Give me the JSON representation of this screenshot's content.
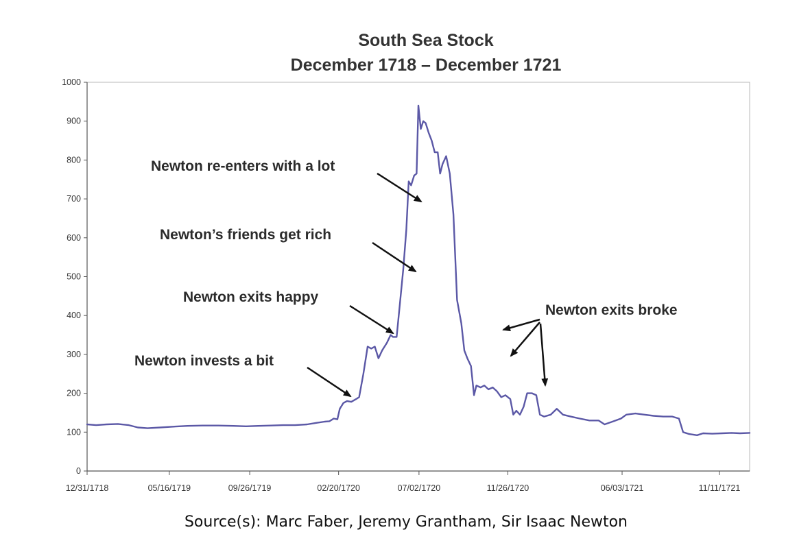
{
  "chart_data": {
    "type": "line",
    "title": "South Sea Stock",
    "subtitle": "December 1718 – December 1721",
    "xlabel": "",
    "ylabel": "",
    "ylim": [
      0,
      1000
    ],
    "yticks": [
      0,
      100,
      200,
      300,
      400,
      500,
      600,
      700,
      800,
      900,
      1000
    ],
    "xlim": [
      "1718-12-31",
      "1721-12-31"
    ],
    "xticks": [
      {
        "date": "1718-12-31",
        "label": "12/31/1718"
      },
      {
        "date": "1719-05-16",
        "label": "05/16/1719"
      },
      {
        "date": "1719-09-26",
        "label": "09/26/1719"
      },
      {
        "date": "1720-02-20",
        "label": "02/20/1720"
      },
      {
        "date": "1720-07-02",
        "label": "07/02/1720"
      },
      {
        "date": "1720-11-26",
        "label": "11/26/1720"
      },
      {
        "date": "1721-06-03",
        "label": "06/03/1721"
      },
      {
        "date": "1721-11-11",
        "label": "11/11/1721"
      }
    ],
    "grid": false,
    "line_color": "#5b58a6",
    "series": [
      {
        "points": [
          [
            "1718-12-31",
            120
          ],
          [
            "1719-01-15",
            118
          ],
          [
            "1719-02-01",
            120
          ],
          [
            "1719-02-20",
            121
          ],
          [
            "1719-03-10",
            118
          ],
          [
            "1719-03-25",
            112
          ],
          [
            "1719-04-10",
            110
          ],
          [
            "1719-05-01",
            112
          ],
          [
            "1719-05-20",
            114
          ],
          [
            "1719-06-15",
            116
          ],
          [
            "1719-07-10",
            117
          ],
          [
            "1719-08-05",
            117
          ],
          [
            "1719-08-30",
            116
          ],
          [
            "1719-09-20",
            115
          ],
          [
            "1719-10-10",
            116
          ],
          [
            "1719-10-30",
            117
          ],
          [
            "1719-11-20",
            118
          ],
          [
            "1719-12-10",
            118
          ],
          [
            "1719-12-30",
            120
          ],
          [
            "1720-01-15",
            124
          ],
          [
            "1720-01-28",
            127
          ],
          [
            "1720-02-05",
            128
          ],
          [
            "1720-02-12",
            135
          ],
          [
            "1720-02-18",
            133
          ],
          [
            "1720-02-22",
            160
          ],
          [
            "1720-02-28",
            175
          ],
          [
            "1720-03-05",
            180
          ],
          [
            "1720-03-12",
            178
          ],
          [
            "1720-03-20",
            185
          ],
          [
            "1720-03-25",
            190
          ],
          [
            "1720-04-01",
            250
          ],
          [
            "1720-04-08",
            320
          ],
          [
            "1720-04-14",
            315
          ],
          [
            "1720-04-20",
            320
          ],
          [
            "1720-04-26",
            290
          ],
          [
            "1720-05-02",
            310
          ],
          [
            "1720-05-10",
            330
          ],
          [
            "1720-05-16",
            350
          ],
          [
            "1720-05-20",
            345
          ],
          [
            "1720-05-26",
            345
          ],
          [
            "1720-06-01",
            440
          ],
          [
            "1720-06-06",
            520
          ],
          [
            "1720-06-11",
            620
          ],
          [
            "1720-06-15",
            745
          ],
          [
            "1720-06-19",
            735
          ],
          [
            "1720-06-24",
            760
          ],
          [
            "1720-06-28",
            765
          ],
          [
            "1720-07-01",
            940
          ],
          [
            "1720-07-05",
            880
          ],
          [
            "1720-07-09",
            900
          ],
          [
            "1720-07-13",
            895
          ],
          [
            "1720-07-18",
            870
          ],
          [
            "1720-07-23",
            850
          ],
          [
            "1720-07-28",
            820
          ],
          [
            "1720-08-02",
            820
          ],
          [
            "1720-08-06",
            765
          ],
          [
            "1720-08-10",
            790
          ],
          [
            "1720-08-16",
            810
          ],
          [
            "1720-08-22",
            765
          ],
          [
            "1720-08-28",
            660
          ],
          [
            "1720-09-03",
            440
          ],
          [
            "1720-09-10",
            380
          ],
          [
            "1720-09-15",
            310
          ],
          [
            "1720-09-20",
            290
          ],
          [
            "1720-09-26",
            270
          ],
          [
            "1720-10-01",
            195
          ],
          [
            "1720-10-05",
            220
          ],
          [
            "1720-10-12",
            215
          ],
          [
            "1720-10-18",
            220
          ],
          [
            "1720-10-25",
            210
          ],
          [
            "1720-11-01",
            215
          ],
          [
            "1720-11-08",
            205
          ],
          [
            "1720-11-15",
            190
          ],
          [
            "1720-11-22",
            195
          ],
          [
            "1720-11-30",
            185
          ],
          [
            "1720-12-05",
            145
          ],
          [
            "1720-12-10",
            155
          ],
          [
            "1720-12-16",
            145
          ],
          [
            "1720-12-22",
            165
          ],
          [
            "1720-12-28",
            200
          ],
          [
            "1721-01-05",
            200
          ],
          [
            "1721-01-12",
            195
          ],
          [
            "1721-01-18",
            145
          ],
          [
            "1721-01-25",
            140
          ],
          [
            "1721-02-05",
            145
          ],
          [
            "1721-02-15",
            160
          ],
          [
            "1721-02-25",
            145
          ],
          [
            "1721-03-10",
            140
          ],
          [
            "1721-03-25",
            135
          ],
          [
            "1721-04-10",
            130
          ],
          [
            "1721-04-25",
            130
          ],
          [
            "1721-05-05",
            120
          ],
          [
            "1721-05-20",
            128
          ],
          [
            "1721-06-01",
            135
          ],
          [
            "1721-06-10",
            145
          ],
          [
            "1721-06-25",
            148
          ],
          [
            "1721-07-10",
            145
          ],
          [
            "1721-07-25",
            142
          ],
          [
            "1721-08-10",
            140
          ],
          [
            "1721-08-25",
            140
          ],
          [
            "1721-09-05",
            135
          ],
          [
            "1721-09-12",
            100
          ],
          [
            "1721-09-22",
            95
          ],
          [
            "1721-10-05",
            92
          ],
          [
            "1721-10-15",
            97
          ],
          [
            "1721-10-30",
            96
          ],
          [
            "1721-11-15",
            97
          ],
          [
            "1721-12-01",
            98
          ],
          [
            "1721-12-15",
            97
          ],
          [
            "1721-12-31",
            98
          ]
        ]
      }
    ],
    "annotations": [
      {
        "text": "Newton invests a bit",
        "point": [
          "1720-02-24",
          185
        ]
      },
      {
        "text": "Newton exits happy",
        "point": [
          "1720-05-10",
          350
        ]
      },
      {
        "text": "Newton’s friends get rich",
        "point": [
          "1720-06-01",
          520
        ]
      },
      {
        "text": "Newton re-enters with a lot",
        "point": [
          "1720-06-12",
          690
        ]
      },
      {
        "text": "Newton exits broke",
        "points": [
          [
            "1720-09-15",
            355
          ],
          [
            "1720-09-20",
            290
          ],
          [
            "1720-11-30",
            220
          ]
        ]
      }
    ]
  },
  "source": "Source(s): Marc Faber, Jeremy Grantham, Sir Isaac Newton"
}
